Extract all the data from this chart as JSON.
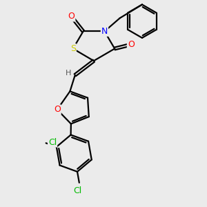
{
  "bg_color": "#ebebeb",
  "bond_color": "#000000",
  "bond_width": 1.6,
  "dbo": 0.07,
  "atom_colors": {
    "S": "#cccc00",
    "N": "#0000ff",
    "O": "#ff0000",
    "Cl": "#00bb00",
    "H": "#555555",
    "C": "#000000"
  },
  "xlim": [
    0,
    10
  ],
  "ylim": [
    0,
    10
  ]
}
